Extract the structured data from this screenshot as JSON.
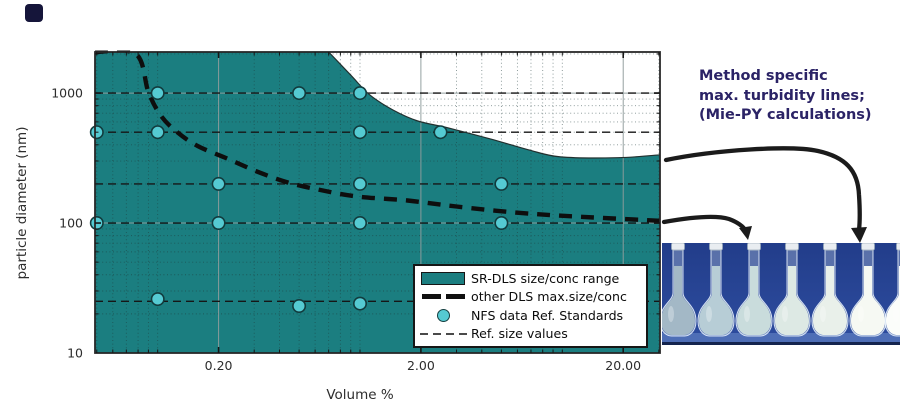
{
  "page": {
    "background": "#ffffff",
    "corner_mark_color": "#15153a"
  },
  "annotation": {
    "lines": [
      "Method specific",
      "max. turbidity lines;",
      "(Mie-PY calculations)"
    ],
    "color": "#2b2366"
  },
  "flask_photo": {
    "background_top": "#223d8a",
    "background_bottom": "#2e4da0",
    "bench_color": "#4e6eb6",
    "shadow_color": "#14244e",
    "flask_count": 7,
    "liquid_colors": [
      "#a3b8c6",
      "#b7cdd6",
      "#c9dcdc",
      "#dde9e4",
      "#e9f0ea",
      "#f6f9f3",
      "#fbfdfa"
    ]
  },
  "chart_data": {
    "type": "area",
    "title": "",
    "xlabel": "Volume %",
    "ylabel": "particle diameter (nm)",
    "x_scale": "log",
    "y_scale": "log",
    "xlim": [
      0.049,
      30.4
    ],
    "ylim": [
      10,
      2070
    ],
    "grid": true,
    "x_ticks": [
      {
        "value": 0.2,
        "label": "0.20"
      },
      {
        "value": 2,
        "label": "2.00"
      },
      {
        "value": 20,
        "label": "20.00"
      }
    ],
    "y_ticks": [
      {
        "value": 10,
        "label": "10"
      },
      {
        "value": 100,
        "label": "100"
      },
      {
        "value": 1000,
        "label": "1000"
      }
    ],
    "x_minor_ticks": [
      0.05,
      0.06,
      0.07,
      0.08,
      0.09,
      0.1,
      0.3,
      0.4,
      0.5,
      0.6,
      0.7,
      0.8,
      0.9,
      1,
      3,
      4,
      5,
      6,
      7,
      8,
      9,
      10,
      30
    ],
    "y_minor_ticks": [
      20,
      30,
      40,
      50,
      60,
      70,
      80,
      90,
      200,
      300,
      400,
      500,
      600,
      700,
      800,
      900,
      2000
    ],
    "ref_size_lines_nm": [
      1000,
      500,
      200,
      100,
      25
    ],
    "sr_dls_region": {
      "label": "SR-DLS size/conc range",
      "fill_color": "#1b7e80",
      "upper_boundary": {
        "x": [
          0.7,
          0.9,
          1.12,
          1.46,
          1.93,
          2.72,
          4.6,
          6.8,
          9.8,
          18.8,
          30.4
        ],
        "y": [
          2070,
          1375,
          965,
          740,
          610,
          540,
          436,
          366,
          323,
          318,
          335
        ]
      }
    },
    "other_dls_curve": {
      "label": "other DLS max.size/conc",
      "x": [
        0.049,
        0.078,
        0.09,
        0.103,
        0.123,
        0.157,
        0.222,
        0.312,
        0.44,
        0.62,
        0.97,
        1.72,
        3.0,
        6.0,
        11.9,
        30.4
      ],
      "y": [
        2070,
        2000,
        1020,
        680,
        510,
        393,
        312,
        248,
        205,
        181,
        160,
        149,
        134,
        120,
        112,
        104
      ]
    },
    "nfs_points": {
      "label": "NFS data Ref. Standards",
      "marker_color": "#55cad2",
      "points": [
        [
          0.05,
          500
        ],
        [
          0.05,
          100
        ],
        [
          0.1,
          1000
        ],
        [
          0.1,
          500
        ],
        [
          0.1,
          26
        ],
        [
          0.2,
          200
        ],
        [
          0.2,
          100
        ],
        [
          0.5,
          1000
        ],
        [
          0.5,
          23
        ],
        [
          1.0,
          1000
        ],
        [
          1.0,
          500
        ],
        [
          1.0,
          200
        ],
        [
          1.0,
          100
        ],
        [
          1.0,
          24
        ],
        [
          2.5,
          500
        ],
        [
          5.0,
          200
        ],
        [
          5.0,
          100
        ]
      ]
    },
    "legend": {
      "position": "lower right",
      "items": [
        {
          "swatch": "filled-area",
          "label": "SR-DLS size/conc range"
        },
        {
          "swatch": "thick-dashed-line",
          "label": "other DLS max.size/conc"
        },
        {
          "swatch": "circle-marker",
          "label": "NFS data Ref. Standards"
        },
        {
          "swatch": "thin-dashed-line",
          "label": "Ref. size values"
        }
      ]
    }
  }
}
